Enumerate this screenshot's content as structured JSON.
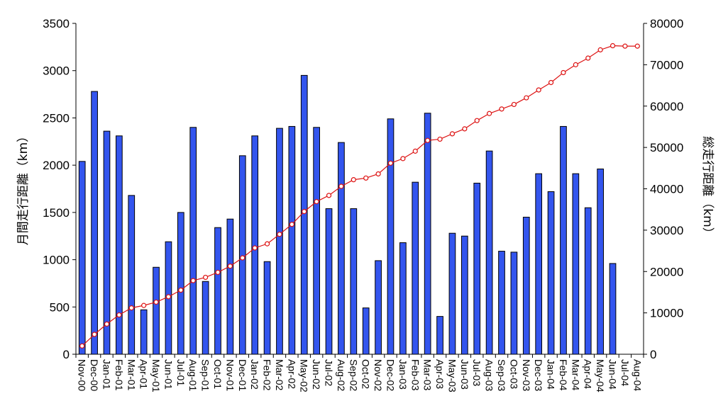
{
  "chart_data": {
    "type": "bar",
    "categories": [
      "Nov-00",
      "Dec-00",
      "Jan-01",
      "Feb-01",
      "Mar-01",
      "Apr-01",
      "May-01",
      "Jun-01",
      "Jul-01",
      "Aug-01",
      "Sep-01",
      "Oct-01",
      "Nov-01",
      "Dec-01",
      "Jan-02",
      "Feb-02",
      "Mar-02",
      "Apr-02",
      "May-02",
      "Jun-02",
      "Jul-02",
      "Aug-02",
      "Sep-02",
      "Oct-02",
      "Nov-02",
      "Dec-02",
      "Jan-03",
      "Feb-03",
      "Mar-03",
      "Apr-03",
      "May-03",
      "Jun-03",
      "Jul-03",
      "Aug-03",
      "Sep-03",
      "Oct-03",
      "Nov-03",
      "Dec-03",
      "Jan-04",
      "Feb-04",
      "Mar-04",
      "Apr-04",
      "May-04",
      "Jun-04",
      "Jul-04",
      "Aug-04"
    ],
    "series": [
      {
        "type": "bar",
        "axis": "left",
        "color": "#3355ee",
        "values": [
          2040,
          2780,
          2360,
          2310,
          1680,
          470,
          920,
          1190,
          1500,
          2400,
          770,
          1340,
          1430,
          2100,
          2310,
          980,
          2390,
          2410,
          2950,
          2400,
          1540,
          2240,
          1540,
          490,
          990,
          2490,
          1180,
          1820,
          2550,
          400,
          1280,
          1250,
          1810,
          2150,
          1090,
          1080,
          1450,
          1910,
          1720,
          2410,
          1910,
          1550,
          1960,
          960,
          null,
          null
        ]
      },
      {
        "type": "line",
        "axis": "right",
        "color": "#dd1111",
        "values": [
          2000,
          4800,
          7300,
          9500,
          11200,
          11800,
          12600,
          13900,
          15500,
          17800,
          18600,
          19800,
          21300,
          23300,
          25700,
          26700,
          29000,
          31400,
          34500,
          36900,
          38400,
          40600,
          42200,
          42600,
          43600,
          46200,
          47300,
          49100,
          51700,
          52000,
          53300,
          54500,
          56500,
          58200,
          59300,
          60400,
          62000,
          63900,
          65700,
          68100,
          70000,
          71600,
          73600,
          74600,
          74500,
          74500
        ]
      }
    ],
    "y_left": {
      "label": "月間走行距離（km）",
      "min": 0,
      "max": 3500,
      "step": 500
    },
    "y_right": {
      "label": "総走行距離（km）",
      "min": 0,
      "max": 80000,
      "step": 10000
    },
    "xlabel": "",
    "title": "",
    "grid": false,
    "legend": "none"
  }
}
